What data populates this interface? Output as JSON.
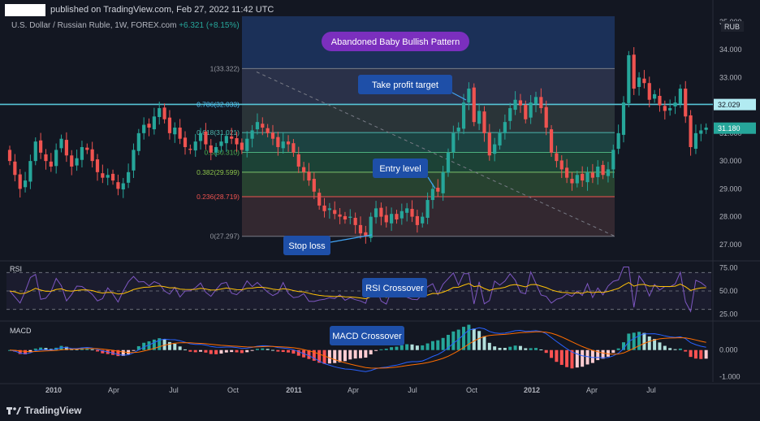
{
  "header": {
    "published": "published on TradingView.com, Feb 27, 2022 11:42 UTC",
    "symbol": "U.S. Dollar / Russian Ruble, 1W, FOREX.com",
    "change": "+6.321 (+8.15%)"
  },
  "footer": {
    "logo_icon": "tradingview-logo-icon",
    "brand": "TradingView"
  },
  "colors": {
    "background": "#131722",
    "up": "#26a69a",
    "down": "#ef5350",
    "rsi_line": "#7e57c2",
    "rsi_signal": "#ffc107",
    "macd_line": "#2962ff",
    "macd_signal": "#ff6d00",
    "annotation": "#1e4fa8",
    "pattern_callout": "#7b2fbe"
  },
  "chart_data": [
    {
      "type": "candlestick",
      "title": "U.S. Dollar / Russian Ruble, 1W, FOREX.com",
      "currency": "RUB",
      "x_ticks": [
        "2010",
        "Apr",
        "Jul",
        "Oct",
        "2011",
        "Apr",
        "Jul",
        "Oct",
        "2012",
        "Apr",
        "Jul"
      ],
      "y_ticks": [
        "27.000",
        "28.000",
        "29.000",
        "30.000",
        "31.000",
        "32.000",
        "33.000",
        "34.000",
        "35.000"
      ],
      "ylim": [
        26.5,
        35.2
      ],
      "last_price_labels": [
        {
          "value": "32.029",
          "color": "#131722"
        },
        {
          "value": "31.180",
          "color": "#26a69a"
        }
      ],
      "closes": [
        30.0,
        29.5,
        29.0,
        29.3,
        30.0,
        30.7,
        30.3,
        30.0,
        29.8,
        30.4,
        30.8,
        30.2,
        29.8,
        30.1,
        30.5,
        30.4,
        30.0,
        29.6,
        29.4,
        29.5,
        29.3,
        29.0,
        29.2,
        29.6,
        30.4,
        31.0,
        31.3,
        31.2,
        31.6,
        31.9,
        31.5,
        31.0,
        31.2,
        30.8,
        30.5,
        30.4,
        30.7,
        31.0,
        30.6,
        30.3,
        30.5,
        30.7,
        30.9,
        30.8,
        30.6,
        30.4,
        30.8,
        31.1,
        31.4,
        31.2,
        31.0,
        30.8,
        30.5,
        30.7,
        30.6,
        30.3,
        29.8,
        29.6,
        29.3,
        28.9,
        28.4,
        28.2,
        28.3,
        28.1,
        28.0,
        27.9,
        28.0,
        27.7,
        27.4,
        27.3,
        28.0,
        28.3,
        28.0,
        27.8,
        28.1,
        27.9,
        28.2,
        28.3,
        28.0,
        27.7,
        28.0,
        28.6,
        29.0,
        28.9,
        29.6,
        30.3,
        31.0,
        31.2,
        32.1,
        32.6,
        31.4,
        31.8,
        31.0,
        30.2,
        30.6,
        31.0,
        31.4,
        31.9,
        32.2,
        32.0,
        31.5,
        32.1,
        32.3,
        31.9,
        31.2,
        30.3,
        30.0,
        29.7,
        29.4,
        29.2,
        29.5,
        29.3,
        29.6,
        29.4,
        29.8,
        29.5,
        29.7,
        30.4,
        31.0,
        32.1,
        33.8,
        32.6,
        33.0,
        32.8,
        32.2,
        32.4,
        32.0,
        31.8,
        31.9,
        32.1,
        32.6,
        31.6,
        30.5,
        31.0,
        31.1,
        31.2
      ],
      "fib_levels": [
        {
          "label": "1(33.322)",
          "value": 33.322
        },
        {
          "label": "0.786(32.033)",
          "value": 32.033
        },
        {
          "label": "0.618(31.021)",
          "value": 31.021
        },
        {
          "label": "0.5(30.310)",
          "value": 30.31
        },
        {
          "label": "0.382(29.599)",
          "value": 29.599
        },
        {
          "label": "0.236(28.719)",
          "value": 28.719
        },
        {
          "label": "0(27.297)",
          "value": 27.297
        }
      ],
      "annotations": [
        {
          "text": "Abandoned Baby Bullish Pattern"
        },
        {
          "text": "Take profit target"
        },
        {
          "text": "Entry level"
        },
        {
          "text": "Stop loss"
        }
      ]
    },
    {
      "type": "line",
      "title": "RSI",
      "y_ticks": [
        "25.00",
        "50.00",
        "75.00"
      ],
      "ylim": [
        20,
        80
      ],
      "annotation": "RSI Crossover"
    },
    {
      "type": "histogram",
      "title": "MACD",
      "y_ticks": [
        "0.000",
        "-1.000"
      ],
      "ylim": [
        -1.2,
        1.0
      ],
      "annotation": "MACD Crossover"
    }
  ]
}
